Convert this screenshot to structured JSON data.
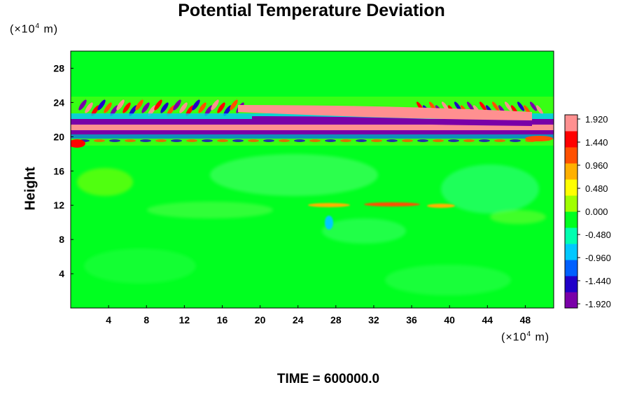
{
  "chart_data": {
    "type": "heatmap",
    "title": "Potential Temperature Deviation",
    "ylabel": "Height",
    "xlabel": "",
    "x_unit_prefix": "(×10",
    "x_unit_exp": "4",
    "x_unit_suffix": " m)",
    "y_unit_prefix": "(×10",
    "y_unit_exp": "4",
    "y_unit_suffix": " m)",
    "xlim": [
      0,
      51
    ],
    "ylim": [
      0,
      30
    ],
    "x_ticks": [
      4,
      8,
      12,
      16,
      20,
      24,
      28,
      32,
      36,
      40,
      44,
      48
    ],
    "y_ticks": [
      4,
      8,
      12,
      16,
      20,
      24,
      28
    ],
    "colorbar": {
      "min": -1.92,
      "max": 1.92,
      "ticks": [
        "1.920",
        "1.440",
        "0.960",
        "0.480",
        "0.000",
        "-0.480",
        "-0.960",
        "-1.440",
        "-1.920"
      ],
      "colors": [
        "#7a00a8",
        "#2000c8",
        "#0060ff",
        "#00c8ff",
        "#00ffb0",
        "#00ff20",
        "#a0ff00",
        "#ffff00",
        "#ffb000",
        "#ff5000",
        "#ff0000",
        "#ff9090"
      ]
    },
    "field_description_values": {
      "background": 0.0,
      "band_center_height": 20.8,
      "band_min": -1.92,
      "band_max": 1.92
    },
    "grid": false,
    "legend": "colorbar-right"
  },
  "footer": {
    "time_label": "TIME = 600000.0"
  }
}
